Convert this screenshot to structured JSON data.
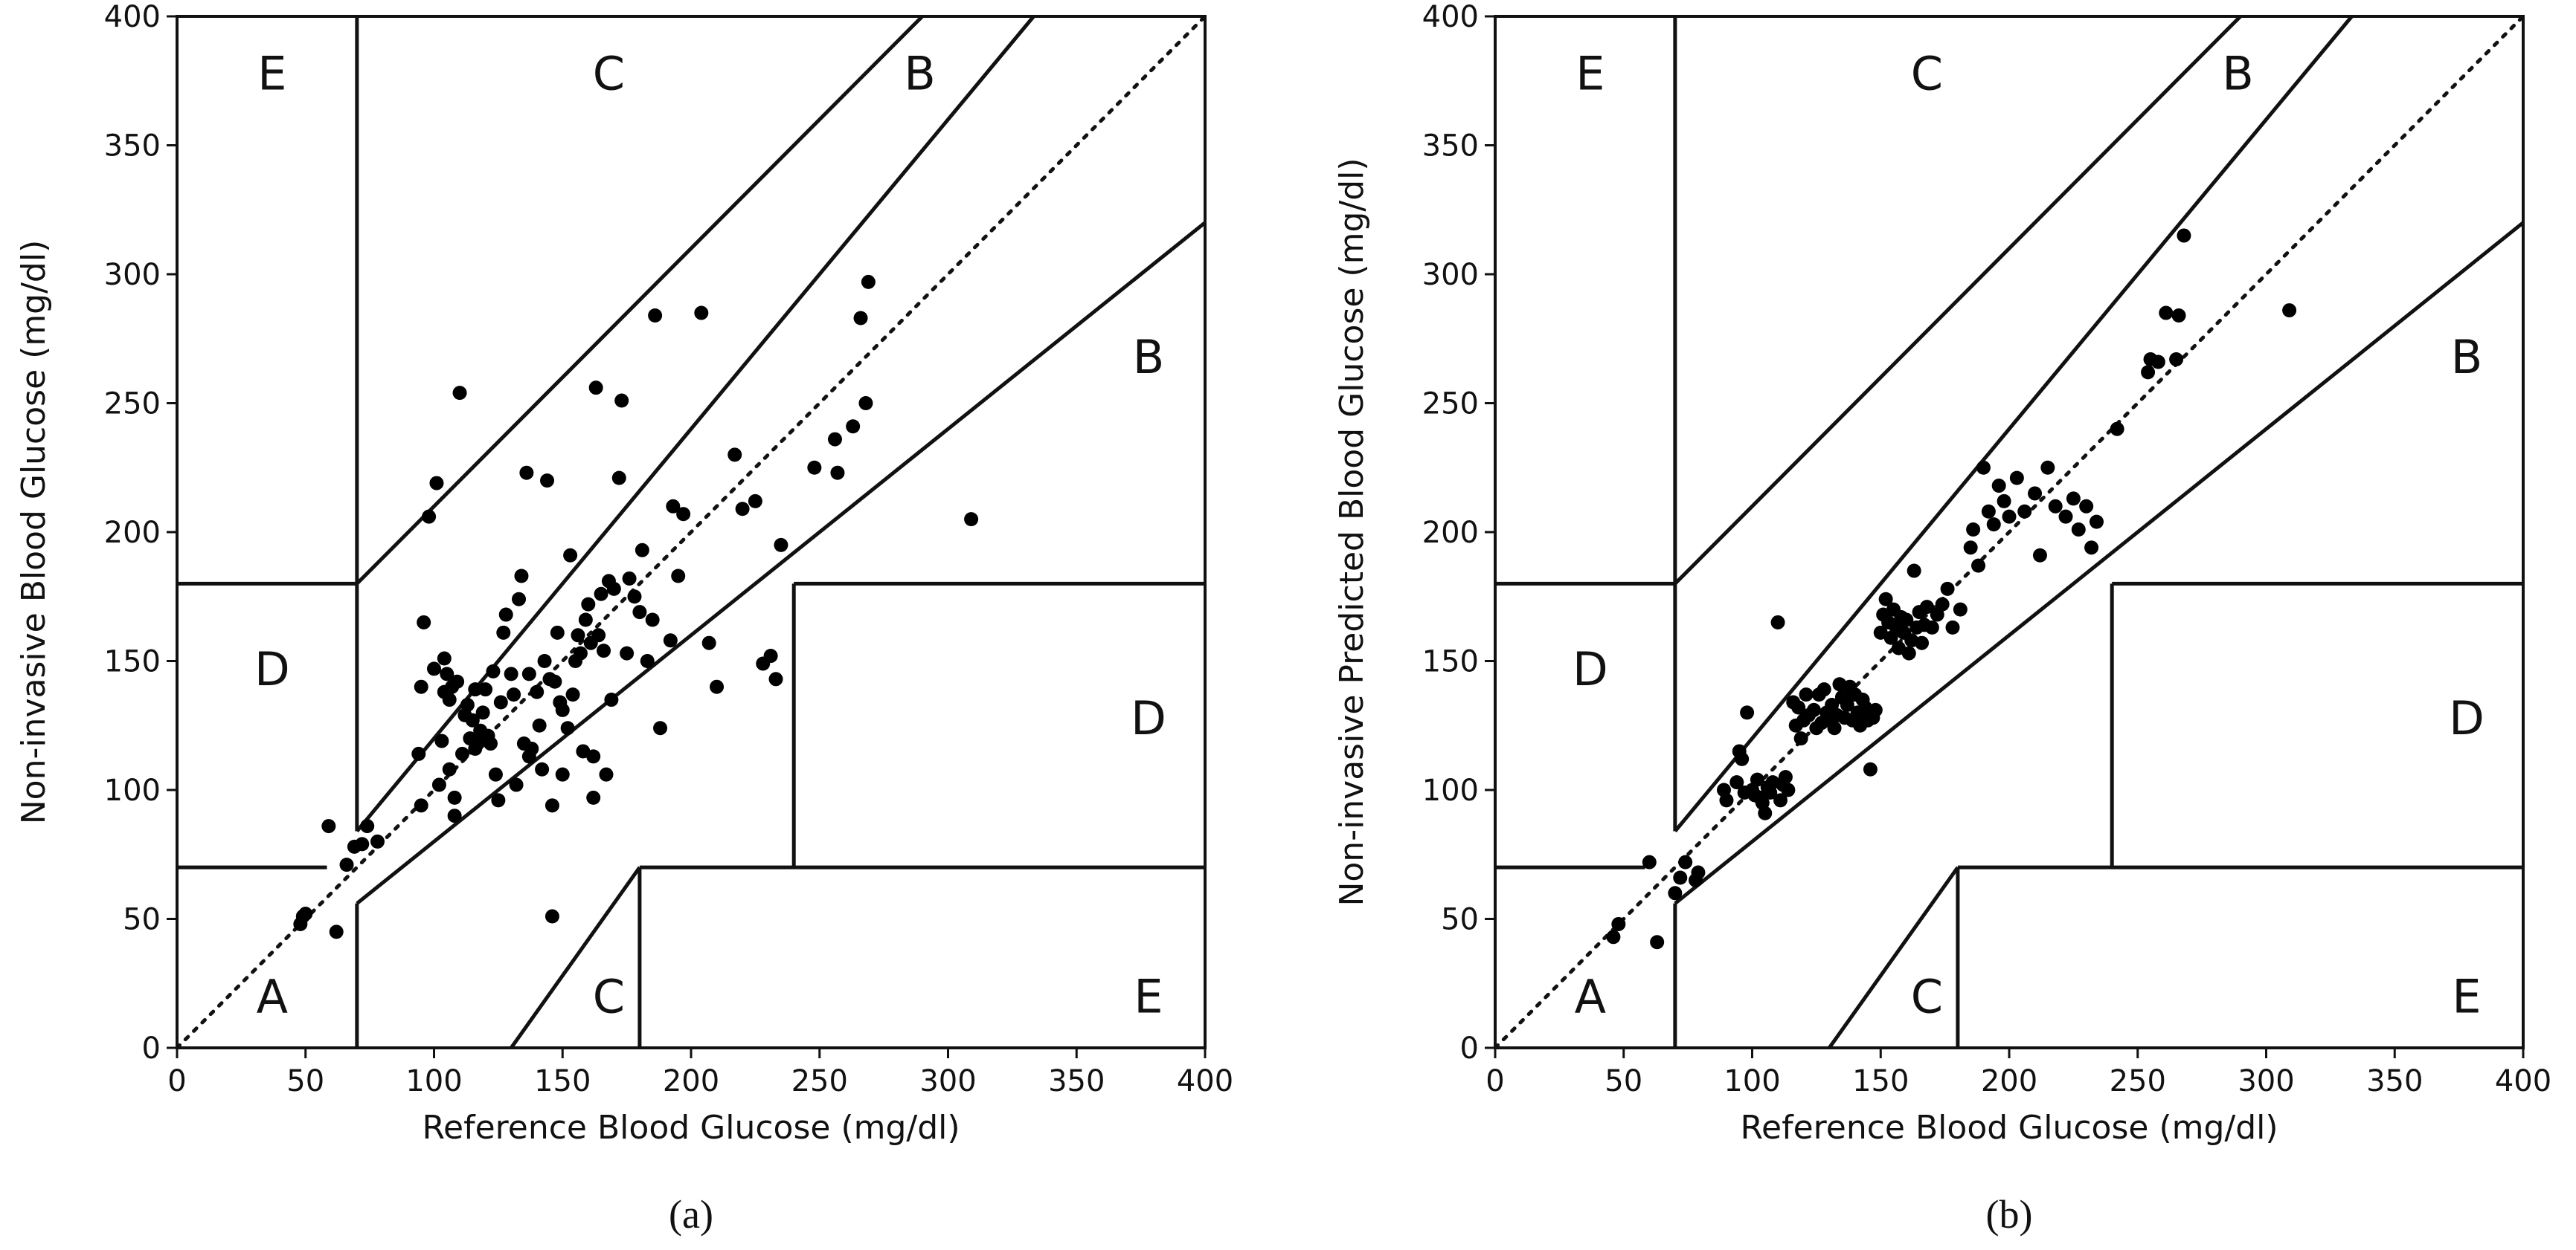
{
  "chart_data": [
    {
      "type": "scatter",
      "panel": "a",
      "caption": "(a)",
      "xlabel": "Reference Blood Glucose (mg/dl)",
      "ylabel": "Non-invasive Blood Glucose (mg/dl)",
      "xlim": [
        0,
        400
      ],
      "ylim": [
        0,
        400
      ],
      "xticks": [
        "0",
        "50",
        "100",
        "150",
        "200",
        "250",
        "300",
        "350",
        "400"
      ],
      "yticks": [
        "0",
        "50",
        "100",
        "150",
        "200",
        "250",
        "300",
        "350",
        "400"
      ],
      "grid": false,
      "reference_line": "y = x (dotted)",
      "zone_labels": [
        {
          "text": "E",
          "x": 37,
          "y": 378
        },
        {
          "text": "C",
          "x": 168,
          "y": 378
        },
        {
          "text": "B",
          "x": 289,
          "y": 378
        },
        {
          "text": "B",
          "x": 378,
          "y": 268
        },
        {
          "text": "D",
          "x": 37,
          "y": 147
        },
        {
          "text": "D",
          "x": 378,
          "y": 128
        },
        {
          "text": "A",
          "x": 37,
          "y": 20
        },
        {
          "text": "C",
          "x": 168,
          "y": 20
        },
        {
          "text": "E",
          "x": 378,
          "y": 20
        }
      ],
      "points": [
        [
          48,
          48
        ],
        [
          49,
          51
        ],
        [
          50,
          52
        ],
        [
          59,
          86
        ],
        [
          62,
          45
        ],
        [
          66,
          71
        ],
        [
          69,
          78
        ],
        [
          72,
          79
        ],
        [
          74,
          86
        ],
        [
          78,
          80
        ],
        [
          94,
          114
        ],
        [
          95,
          140
        ],
        [
          95,
          94
        ],
        [
          96,
          165
        ],
        [
          98,
          206
        ],
        [
          100,
          147
        ],
        [
          101,
          219
        ],
        [
          102,
          102
        ],
        [
          103,
          119
        ],
        [
          104,
          151
        ],
        [
          104,
          138
        ],
        [
          105,
          145
        ],
        [
          106,
          108
        ],
        [
          106,
          135
        ],
        [
          107,
          140
        ],
        [
          108,
          97
        ],
        [
          108,
          90
        ],
        [
          109,
          142
        ],
        [
          110,
          254
        ],
        [
          111,
          114
        ],
        [
          112,
          129
        ],
        [
          113,
          133
        ],
        [
          114,
          120
        ],
        [
          115,
          127
        ],
        [
          116,
          139
        ],
        [
          116,
          116
        ],
        [
          117,
          118
        ],
        [
          118,
          123
        ],
        [
          119,
          130
        ],
        [
          120,
          139
        ],
        [
          121,
          121
        ],
        [
          122,
          118
        ],
        [
          123,
          146
        ],
        [
          124,
          106
        ],
        [
          125,
          96
        ],
        [
          126,
          134
        ],
        [
          127,
          161
        ],
        [
          128,
          168
        ],
        [
          130,
          145
        ],
        [
          131,
          137
        ],
        [
          132,
          102
        ],
        [
          133,
          174
        ],
        [
          134,
          183
        ],
        [
          135,
          118
        ],
        [
          136,
          223
        ],
        [
          137,
          113
        ],
        [
          137,
          145
        ],
        [
          138,
          116
        ],
        [
          140,
          138
        ],
        [
          141,
          125
        ],
        [
          142,
          108
        ],
        [
          143,
          150
        ],
        [
          144,
          220
        ],
        [
          145,
          143
        ],
        [
          146,
          51
        ],
        [
          146,
          94
        ],
        [
          147,
          142
        ],
        [
          148,
          161
        ],
        [
          149,
          134
        ],
        [
          150,
          131
        ],
        [
          150,
          106
        ],
        [
          152,
          124
        ],
        [
          153,
          191
        ],
        [
          154,
          137
        ],
        [
          155,
          150
        ],
        [
          156,
          160
        ],
        [
          157,
          153
        ],
        [
          158,
          115
        ],
        [
          159,
          166
        ],
        [
          160,
          172
        ],
        [
          161,
          157
        ],
        [
          162,
          97
        ],
        [
          162,
          113
        ],
        [
          163,
          256
        ],
        [
          164,
          160
        ],
        [
          165,
          176
        ],
        [
          166,
          154
        ],
        [
          167,
          106
        ],
        [
          168,
          181
        ],
        [
          169,
          135
        ],
        [
          170,
          178
        ],
        [
          172,
          221
        ],
        [
          173,
          251
        ],
        [
          175,
          153
        ],
        [
          176,
          182
        ],
        [
          178,
          175
        ],
        [
          180,
          169
        ],
        [
          181,
          193
        ],
        [
          183,
          150
        ],
        [
          185,
          166
        ],
        [
          186,
          284
        ],
        [
          188,
          124
        ],
        [
          192,
          158
        ],
        [
          193,
          210
        ],
        [
          195,
          183
        ],
        [
          197,
          207
        ],
        [
          204,
          285
        ],
        [
          207,
          157
        ],
        [
          210,
          140
        ],
        [
          217,
          230
        ],
        [
          220,
          209
        ],
        [
          225,
          212
        ],
        [
          228,
          149
        ],
        [
          231,
          152
        ],
        [
          233,
          143
        ],
        [
          235,
          195
        ],
        [
          248,
          225
        ],
        [
          256,
          236
        ],
        [
          257,
          223
        ],
        [
          263,
          241
        ],
        [
          266,
          283
        ],
        [
          268,
          250
        ],
        [
          269,
          297
        ],
        [
          309,
          205
        ]
      ]
    },
    {
      "type": "scatter",
      "panel": "b",
      "caption": "(b)",
      "xlabel": "Reference Blood Glucose (mg/dl)",
      "ylabel": "Non-invasive Predicted Blood Glucose (mg/dl)",
      "xlim": [
        0,
        400
      ],
      "ylim": [
        0,
        400
      ],
      "xticks": [
        "0",
        "50",
        "100",
        "150",
        "200",
        "250",
        "300",
        "350",
        "400"
      ],
      "yticks": [
        "0",
        "50",
        "100",
        "150",
        "200",
        "250",
        "300",
        "350",
        "400"
      ],
      "grid": false,
      "reference_line": "y = x (dotted)",
      "zone_labels": [
        {
          "text": "E",
          "x": 37,
          "y": 378
        },
        {
          "text": "C",
          "x": 168,
          "y": 378
        },
        {
          "text": "B",
          "x": 289,
          "y": 378
        },
        {
          "text": "B",
          "x": 378,
          "y": 268
        },
        {
          "text": "D",
          "x": 37,
          "y": 147
        },
        {
          "text": "D",
          "x": 378,
          "y": 128
        },
        {
          "text": "A",
          "x": 37,
          "y": 20
        },
        {
          "text": "C",
          "x": 168,
          "y": 20
        },
        {
          "text": "E",
          "x": 378,
          "y": 20
        }
      ],
      "points": [
        [
          46,
          43
        ],
        [
          48,
          48
        ],
        [
          60,
          72
        ],
        [
          63,
          41
        ],
        [
          70,
          60
        ],
        [
          72,
          66
        ],
        [
          74,
          72
        ],
        [
          78,
          65
        ],
        [
          79,
          68
        ],
        [
          89,
          100
        ],
        [
          90,
          96
        ],
        [
          94,
          103
        ],
        [
          95,
          115
        ],
        [
          96,
          112
        ],
        [
          97,
          99
        ],
        [
          98,
          130
        ],
        [
          100,
          100
        ],
        [
          101,
          98
        ],
        [
          102,
          104
        ],
        [
          103,
          97
        ],
        [
          104,
          95
        ],
        [
          105,
          91
        ],
        [
          106,
          101
        ],
        [
          107,
          99
        ],
        [
          108,
          103
        ],
        [
          110,
          165
        ],
        [
          111,
          96
        ],
        [
          112,
          102
        ],
        [
          113,
          105
        ],
        [
          114,
          100
        ],
        [
          116,
          134
        ],
        [
          117,
          125
        ],
        [
          118,
          132
        ],
        [
          119,
          120
        ],
        [
          120,
          127
        ],
        [
          121,
          137
        ],
        [
          122,
          129
        ],
        [
          124,
          131
        ],
        [
          125,
          124
        ],
        [
          126,
          137
        ],
        [
          127,
          126
        ],
        [
          128,
          139
        ],
        [
          129,
          130
        ],
        [
          130,
          127
        ],
        [
          131,
          133
        ],
        [
          132,
          124
        ],
        [
          133,
          129
        ],
        [
          134,
          141
        ],
        [
          135,
          136
        ],
        [
          136,
          128
        ],
        [
          137,
          133
        ],
        [
          138,
          140
        ],
        [
          139,
          127
        ],
        [
          140,
          137
        ],
        [
          141,
          130
        ],
        [
          142,
          125
        ],
        [
          143,
          135
        ],
        [
          144,
          132
        ],
        [
          145,
          127
        ],
        [
          146,
          108
        ],
        [
          147,
          128
        ],
        [
          148,
          131
        ],
        [
          150,
          161
        ],
        [
          151,
          168
        ],
        [
          152,
          174
        ],
        [
          153,
          165
        ],
        [
          154,
          159
        ],
        [
          155,
          170
        ],
        [
          156,
          163
        ],
        [
          157,
          155
        ],
        [
          158,
          167
        ],
        [
          159,
          161
        ],
        [
          160,
          166
        ],
        [
          161,
          153
        ],
        [
          162,
          158
        ],
        [
          163,
          185
        ],
        [
          164,
          163
        ],
        [
          165,
          169
        ],
        [
          166,
          157
        ],
        [
          167,
          164
        ],
        [
          168,
          171
        ],
        [
          170,
          163
        ],
        [
          172,
          168
        ],
        [
          174,
          172
        ],
        [
          176,
          178
        ],
        [
          178,
          163
        ],
        [
          181,
          170
        ],
        [
          185,
          194
        ],
        [
          186,
          201
        ],
        [
          188,
          187
        ],
        [
          190,
          225
        ],
        [
          192,
          208
        ],
        [
          194,
          203
        ],
        [
          196,
          218
        ],
        [
          198,
          212
        ],
        [
          200,
          206
        ],
        [
          203,
          221
        ],
        [
          206,
          208
        ],
        [
          210,
          215
        ],
        [
          212,
          191
        ],
        [
          215,
          225
        ],
        [
          218,
          210
        ],
        [
          222,
          206
        ],
        [
          225,
          213
        ],
        [
          227,
          201
        ],
        [
          230,
          210
        ],
        [
          232,
          194
        ],
        [
          234,
          204
        ],
        [
          242,
          240
        ],
        [
          254,
          262
        ],
        [
          255,
          267
        ],
        [
          258,
          266
        ],
        [
          261,
          285
        ],
        [
          265,
          267
        ],
        [
          266,
          284
        ],
        [
          268,
          315
        ],
        [
          309,
          286
        ]
      ]
    }
  ]
}
